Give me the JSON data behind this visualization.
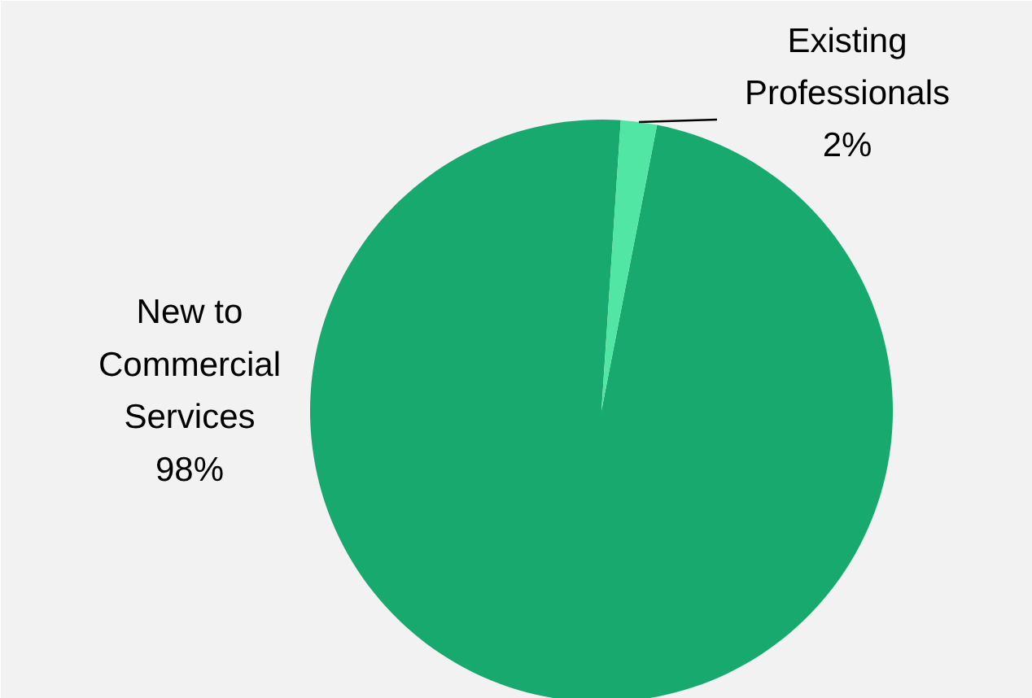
{
  "chart_data": {
    "type": "pie",
    "categories": [
      "New to Commercial Services",
      "Existing Professionals"
    ],
    "values": [
      98,
      2
    ],
    "colors": [
      "#17a96e",
      "#52e6a5"
    ],
    "value_labels": [
      "98%",
      "2%"
    ]
  }
}
